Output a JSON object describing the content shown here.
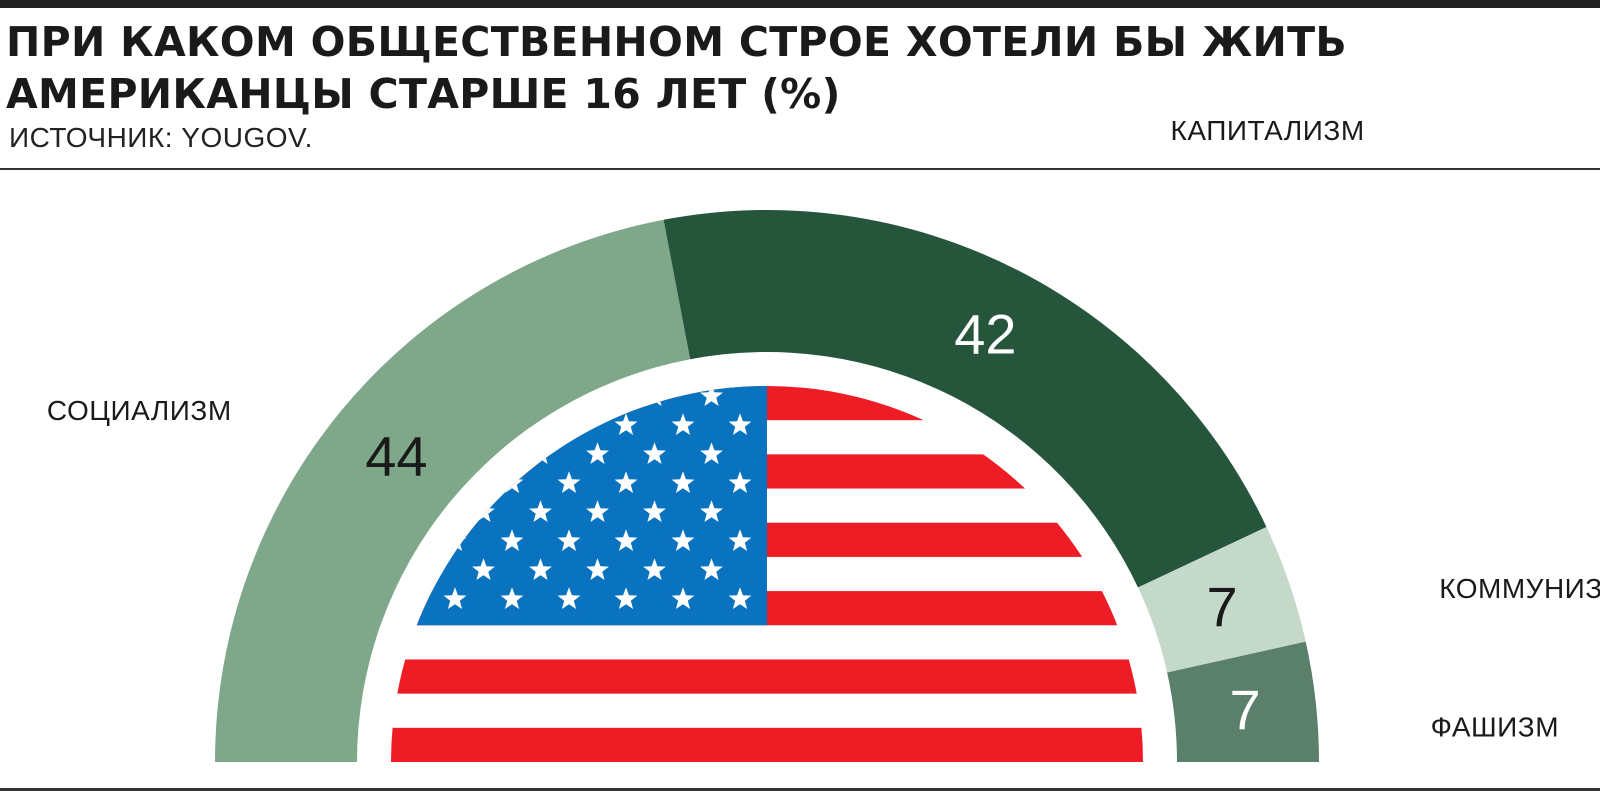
{
  "header": {
    "title_line1": "ПРИ КАКОМ ОБЩЕСТВЕННОМ СТРОЕ ХОТЕЛИ БЫ ЖИТЬ",
    "title_line2": "АМЕРИКАНЦЫ СТАРШЕ 16 ЛЕТ (%)",
    "source": "ИСТОЧНИК: YOUGOV."
  },
  "chart_data": {
    "type": "pie",
    "variant": "half-donut",
    "categories": [
      "СОЦИАЛИЗМ",
      "КАПИТАЛИЗМ",
      "КОММУНИЗМ",
      "ФАШИЗМ"
    ],
    "values": [
      44,
      42,
      7,
      7
    ],
    "colors": [
      "#7fa88a",
      "#25553a",
      "#c5d9cb",
      "#5a7f6a"
    ],
    "value_label_colors": [
      "#1a1a1a",
      "#ffffff",
      "#1a1a1a",
      "#ffffff"
    ],
    "center_image": "us-flag",
    "flag_colors": {
      "red": "#ee1c25",
      "white": "#ffffff",
      "blue": "#0a73bf"
    }
  }
}
